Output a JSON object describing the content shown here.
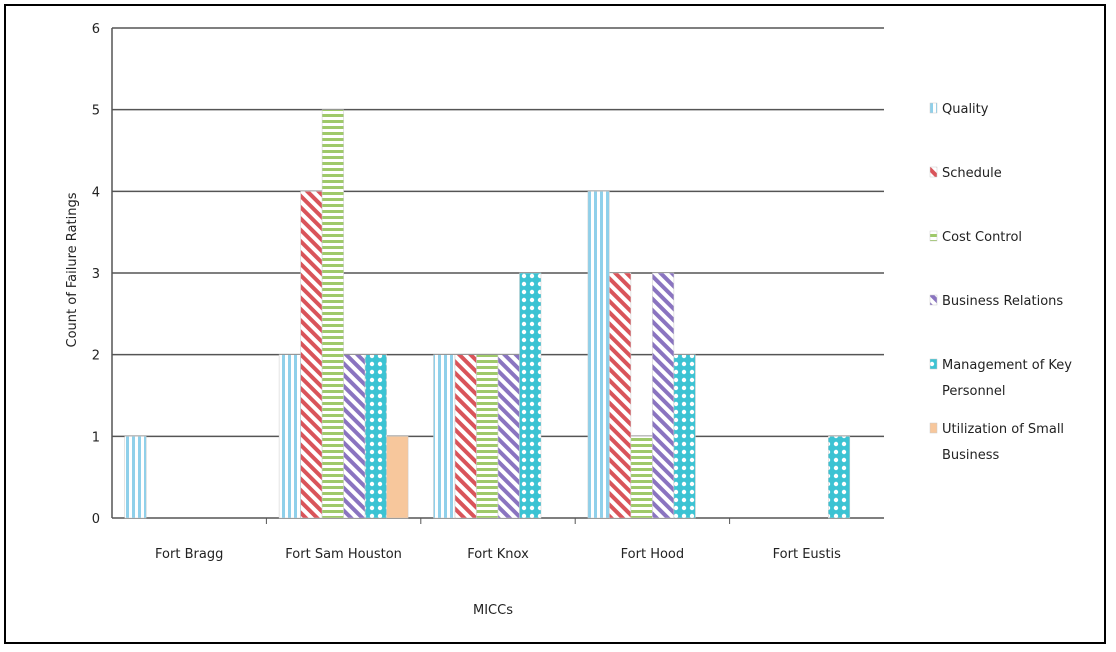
{
  "chart_data": {
    "type": "bar",
    "title": "",
    "xlabel": "MICCs",
    "ylabel": "Count of Failure Ratings",
    "ylim": [
      0,
      6
    ],
    "yticks": [
      0,
      1,
      2,
      3,
      4,
      5,
      6
    ],
    "grid": true,
    "legend_position": "right",
    "categories": [
      "Fort Bragg",
      "Fort Sam Houston",
      "Fort Knox",
      "Fort Hood",
      "Fort Eustis"
    ],
    "series": [
      {
        "name": "Quality",
        "values": [
          1,
          2,
          2,
          4,
          0
        ],
        "color": "#8fd0ea",
        "pattern": "vertical"
      },
      {
        "name": "Schedule",
        "values": [
          0,
          4,
          2,
          3,
          0
        ],
        "color": "#d9545a",
        "pattern": "diagonal"
      },
      {
        "name": "Cost Control",
        "values": [
          0,
          5,
          2,
          1,
          0
        ],
        "color": "#9fc96a",
        "pattern": "horizontal"
      },
      {
        "name": "Business Relations",
        "values": [
          0,
          2,
          2,
          3,
          0
        ],
        "color": "#8a74c0",
        "pattern": "diagonal"
      },
      {
        "name": "Management of Key Personnel",
        "values": [
          0,
          2,
          3,
          2,
          1
        ],
        "color": "#3cc3d3",
        "pattern": "dots"
      },
      {
        "name": "Utilization of Small Business",
        "values": [
          0,
          1,
          0,
          0,
          0
        ],
        "color": "#f7c79c",
        "pattern": "solid"
      }
    ],
    "legend_labels": [
      [
        "Quality"
      ],
      [
        "Schedule"
      ],
      [
        "Cost Control"
      ],
      [
        "Business Relations"
      ],
      [
        "Management of Key",
        "Personnel"
      ],
      [
        "Utilization of Small",
        "Business"
      ]
    ]
  }
}
